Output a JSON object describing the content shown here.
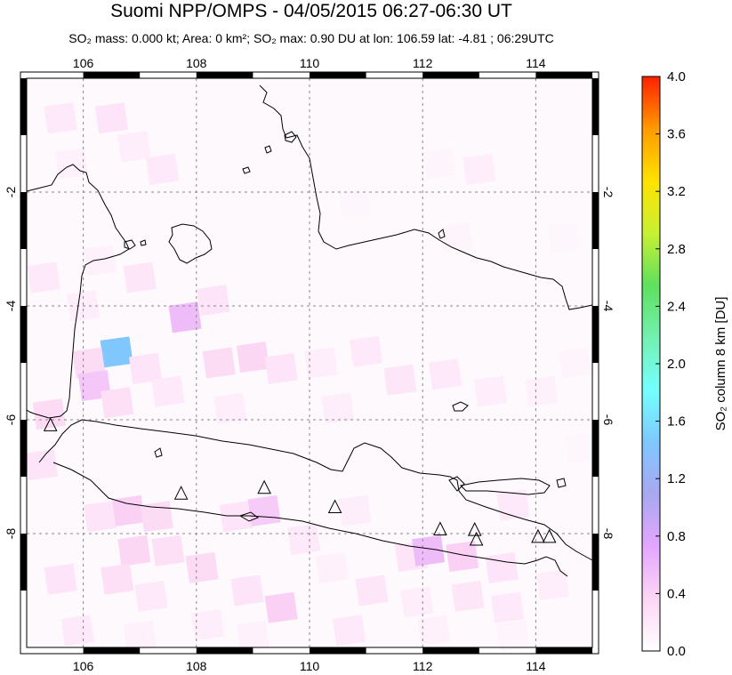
{
  "header": {
    "title": "Suomi NPP/OMPS - 04/05/2015 06:27-06:30 UT",
    "subtitle": "SO₂ mass: 0.000 kt; Area: 0 km²; SO₂ max: 0.90 DU at lon: 106.59 lat: -4.81 ; 06:29UTC"
  },
  "map": {
    "lon_range": [
      105.0,
      115.0
    ],
    "lat_range": [
      -10.0,
      0.0
    ],
    "lon_ticks": [
      106,
      108,
      110,
      112,
      114
    ],
    "lon_tick_labels": [
      "106",
      "108",
      "110",
      "112",
      "114"
    ],
    "lat_ticks": [
      -2,
      -4,
      -6,
      -8
    ],
    "lat_tick_labels": [
      "-2",
      "-4",
      "-6",
      "-8"
    ],
    "grid": "dashed",
    "coast_color": "#000000",
    "volcanoes": [
      {
        "lon": 105.42,
        "lat": -6.1
      },
      {
        "lon": 107.73,
        "lat": -7.3
      },
      {
        "lon": 109.2,
        "lat": -7.2
      },
      {
        "lon": 110.45,
        "lat": -7.54
      },
      {
        "lon": 112.31,
        "lat": -7.93
      },
      {
        "lon": 112.92,
        "lat": -7.94
      },
      {
        "lon": 112.95,
        "lat": -8.11
      },
      {
        "lon": 114.04,
        "lat": -8.06
      },
      {
        "lon": 114.24,
        "lat": -8.06
      }
    ],
    "so2_cells": [
      {
        "lon": 105.6,
        "lat": -0.7,
        "v": 0.12
      },
      {
        "lon": 106.5,
        "lat": -0.7,
        "v": 0.15
      },
      {
        "lon": 106.9,
        "lat": -1.2,
        "v": 0.1
      },
      {
        "lon": 107.4,
        "lat": -1.6,
        "v": 0.12
      },
      {
        "lon": 105.8,
        "lat": -1.5,
        "v": 0.08
      },
      {
        "lon": 112.3,
        "lat": -1.5,
        "v": 0.06
      },
      {
        "lon": 113.0,
        "lat": -1.6,
        "v": 0.1
      },
      {
        "lon": 110.8,
        "lat": -2.2,
        "v": 0.05
      },
      {
        "lon": 112.6,
        "lat": -2.8,
        "v": 0.06
      },
      {
        "lon": 114.5,
        "lat": -2.8,
        "v": 0.05
      },
      {
        "lon": 105.3,
        "lat": -3.5,
        "v": 0.12
      },
      {
        "lon": 106.3,
        "lat": -3.2,
        "v": 0.08
      },
      {
        "lon": 107.0,
        "lat": -3.5,
        "v": 0.14
      },
      {
        "lon": 107.8,
        "lat": -4.2,
        "v": 0.35
      },
      {
        "lon": 108.3,
        "lat": -3.9,
        "v": 0.15
      },
      {
        "lon": 106.0,
        "lat": -4.0,
        "v": 0.1
      },
      {
        "lon": 106.59,
        "lat": -4.81,
        "v": 0.9
      },
      {
        "lon": 106.1,
        "lat": -5.0,
        "v": 0.2
      },
      {
        "lon": 107.1,
        "lat": -5.1,
        "v": 0.15
      },
      {
        "lon": 106.2,
        "lat": -5.4,
        "v": 0.3
      },
      {
        "lon": 106.6,
        "lat": -5.7,
        "v": 0.18
      },
      {
        "lon": 107.5,
        "lat": -5.5,
        "v": 0.12
      },
      {
        "lon": 108.4,
        "lat": -5.0,
        "v": 0.2
      },
      {
        "lon": 109.0,
        "lat": -4.9,
        "v": 0.22
      },
      {
        "lon": 109.5,
        "lat": -5.1,
        "v": 0.15
      },
      {
        "lon": 108.6,
        "lat": -5.8,
        "v": 0.1
      },
      {
        "lon": 110.2,
        "lat": -5.0,
        "v": 0.1
      },
      {
        "lon": 111.0,
        "lat": -4.8,
        "v": 0.12
      },
      {
        "lon": 111.6,
        "lat": -5.3,
        "v": 0.14
      },
      {
        "lon": 112.4,
        "lat": -5.2,
        "v": 0.12
      },
      {
        "lon": 113.2,
        "lat": -5.5,
        "v": 0.1
      },
      {
        "lon": 114.1,
        "lat": -5.5,
        "v": 0.08
      },
      {
        "lon": 114.7,
        "lat": -5.0,
        "v": 0.06
      },
      {
        "lon": 110.5,
        "lat": -5.8,
        "v": 0.1
      },
      {
        "lon": 105.4,
        "lat": -5.9,
        "v": 0.2
      },
      {
        "lon": 105.2,
        "lat": -6.8,
        "v": 0.15
      },
      {
        "lon": 114.8,
        "lat": -6.5,
        "v": 0.05
      },
      {
        "lon": 106.3,
        "lat": -7.7,
        "v": 0.15
      },
      {
        "lon": 106.8,
        "lat": -7.6,
        "v": 0.25
      },
      {
        "lon": 107.3,
        "lat": -7.7,
        "v": 0.2
      },
      {
        "lon": 106.9,
        "lat": -8.3,
        "v": 0.22
      },
      {
        "lon": 107.5,
        "lat": -8.3,
        "v": 0.18
      },
      {
        "lon": 108.7,
        "lat": -7.7,
        "v": 0.15
      },
      {
        "lon": 109.2,
        "lat": -7.6,
        "v": 0.28
      },
      {
        "lon": 109.9,
        "lat": -8.1,
        "v": 0.12
      },
      {
        "lon": 110.8,
        "lat": -7.6,
        "v": 0.1
      },
      {
        "lon": 111.8,
        "lat": -8.4,
        "v": 0.15
      },
      {
        "lon": 112.1,
        "lat": -8.3,
        "v": 0.35
      },
      {
        "lon": 112.7,
        "lat": -8.4,
        "v": 0.25
      },
      {
        "lon": 113.4,
        "lat": -8.6,
        "v": 0.15
      },
      {
        "lon": 113.6,
        "lat": -7.5,
        "v": 0.12
      },
      {
        "lon": 105.6,
        "lat": -8.8,
        "v": 0.15
      },
      {
        "lon": 106.6,
        "lat": -8.8,
        "v": 0.18
      },
      {
        "lon": 107.2,
        "lat": -9.1,
        "v": 0.12
      },
      {
        "lon": 108.1,
        "lat": -8.6,
        "v": 0.2
      },
      {
        "lon": 108.9,
        "lat": -9.0,
        "v": 0.15
      },
      {
        "lon": 109.5,
        "lat": -9.3,
        "v": 0.25
      },
      {
        "lon": 110.4,
        "lat": -8.6,
        "v": 0.08
      },
      {
        "lon": 111.1,
        "lat": -9.0,
        "v": 0.14
      },
      {
        "lon": 111.9,
        "lat": -9.2,
        "v": 0.1
      },
      {
        "lon": 112.8,
        "lat": -9.1,
        "v": 0.14
      },
      {
        "lon": 113.5,
        "lat": -9.3,
        "v": 0.12
      },
      {
        "lon": 114.3,
        "lat": -8.9,
        "v": 0.1
      },
      {
        "lon": 105.9,
        "lat": -9.7,
        "v": 0.12
      },
      {
        "lon": 107.0,
        "lat": -9.8,
        "v": 0.08
      },
      {
        "lon": 108.2,
        "lat": -9.6,
        "v": 0.1
      },
      {
        "lon": 109.0,
        "lat": -9.8,
        "v": 0.08
      },
      {
        "lon": 110.7,
        "lat": -9.7,
        "v": 0.12
      },
      {
        "lon": 112.2,
        "lat": -9.7,
        "v": 0.08
      },
      {
        "lon": 113.6,
        "lat": -9.8,
        "v": 0.06
      }
    ]
  },
  "colorbar": {
    "label": "SO₂ column 8 km [DU]",
    "min": 0.0,
    "max": 4.0,
    "tick_values": [
      0.0,
      0.4,
      0.8,
      1.2,
      1.6,
      2.0,
      2.4,
      2.8,
      3.2,
      3.6,
      4.0
    ],
    "tick_labels": [
      "0.0",
      "0.4",
      "0.8",
      "1.2",
      "1.6",
      "2.0",
      "2.4",
      "2.8",
      "3.2",
      "3.6",
      "4.0"
    ],
    "colors": [
      "#ffffff",
      "#fcd6f4",
      "#e4a6ff",
      "#a8a8f0",
      "#7ec8ff",
      "#74ffff",
      "#74f0b0",
      "#5ee05e",
      "#c8f032",
      "#ffe200",
      "#ff9a00",
      "#ff2000"
    ]
  }
}
